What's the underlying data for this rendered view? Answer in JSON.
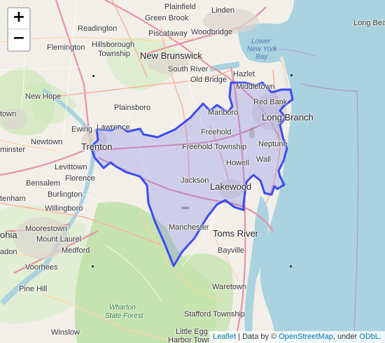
{
  "zoom": {
    "in_label": "+",
    "out_label": "−"
  },
  "attribution": {
    "leaflet": "Leaflet",
    "sep1": " | Data by © ",
    "osm": "OpenStreetMap",
    "sep2": ", under ",
    "odbl": "ODbL",
    "end": "."
  },
  "region": {
    "stroke": "#3b4cf0",
    "fill": "#7a82f0"
  },
  "colors": {
    "water": "#aad3df",
    "land": "#f2efe9",
    "forest": "#c8e6b4",
    "motorway": "#e892a2",
    "trunk": "#f9b29c",
    "primary": "#fcd6a4"
  },
  "places": {
    "plainfield": "Plainfield",
    "linden": "Linden",
    "green_brook": "Green Brook",
    "readington": "Readington",
    "piscataway": "Piscataway",
    "woodbridge": "Woodbridge",
    "long_beach": "Long Beach",
    "flemington": "Flemington",
    "hillsborough": "Hillsborough",
    "township": "Township",
    "new_brunswick": "New Brunswick",
    "lower": "Lower",
    "new_york": "New York",
    "bay": "Bay",
    "south_river": "South River",
    "old_bridge": "Old Bridge",
    "hazlet": "Hazlet",
    "middletown": "Middletown",
    "new_hope": "New Hope",
    "red_bank": "Red Bank",
    "plainsboro": "Plainsboro",
    "marlboro": "Marlboro",
    "town": "town",
    "ewing": "Ewing",
    "lawrence": "Lawrence",
    "long_branch": "Long Branch",
    "freehold": "Freehold",
    "newtown": "Newtown",
    "trenton": "Trenton",
    "freehold_twp": "Freehold Township",
    "neptune": "Neptune",
    "minster": "minster",
    "levittown": "Levittown",
    "howell": "Howell",
    "wall": "Wall",
    "florence": "Florence",
    "bensalem": "Bensalem",
    "jackson": "Jackson",
    "lakewood": "Lakewood",
    "burlington": "Burlington",
    "tenham": "tenham",
    "willingboro": "Willingboro",
    "manchester": "Manchester",
    "moorestown": "Moorestown",
    "toms_river": "Toms River",
    "ohia": "ohia",
    "mount_laurel": "Mount Laurel",
    "adon": "adon",
    "medford": "Medford",
    "bayville": "Bayville",
    "voorhees": "Voorhees",
    "pine_hill": "Pine Hill",
    "waretown": "Waretown",
    "wharton": "Wharton",
    "state_forest": "State Forest",
    "stafford_twp": "Stafford Township",
    "winslow": "Winslow",
    "little_egg": "Little Egg",
    "harbor_towns": "Harbor Towns"
  }
}
